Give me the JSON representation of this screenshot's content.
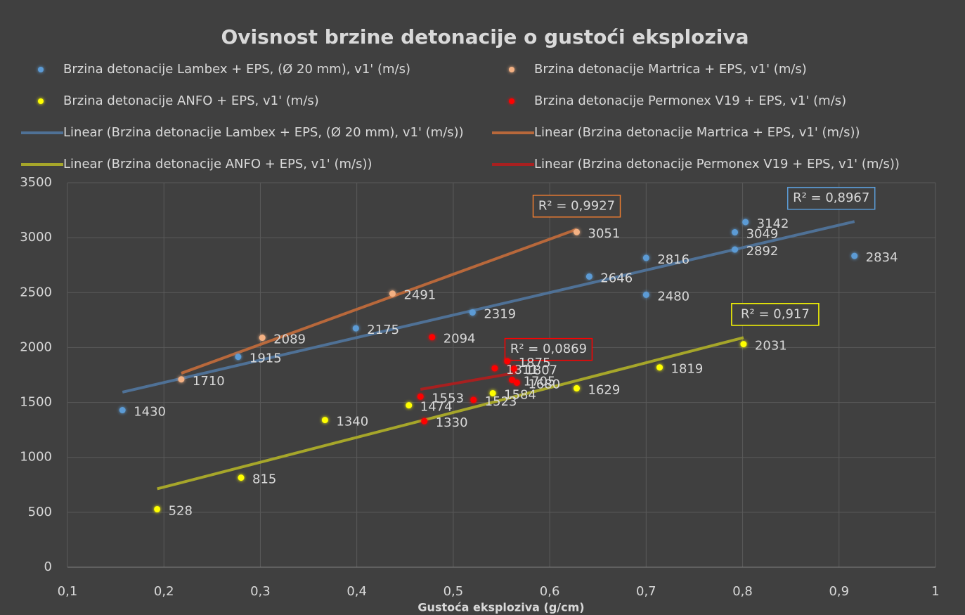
{
  "chart_data": {
    "type": "scatter",
    "title": "Ovisnost brzine detonacije o gustoći eksploziva",
    "x_label": "Gustoća eksploziva (g/cm)",
    "xlim": [
      0.1,
      1
    ],
    "xticks": [
      {
        "value": 0.1,
        "label": "0,1"
      },
      {
        "value": 0.2,
        "label": "0,2"
      },
      {
        "value": 0.3,
        "label": "0,3"
      },
      {
        "value": 0.4,
        "label": "0,4"
      },
      {
        "value": 0.5,
        "label": "0,5"
      },
      {
        "value": 0.6,
        "label": "0,6"
      },
      {
        "value": 0.7,
        "label": "0,7"
      },
      {
        "value": 0.8,
        "label": "0,8"
      },
      {
        "value": 0.9,
        "label": "0,9"
      },
      1
    ],
    "ylim": [
      0,
      3500
    ],
    "yticks": [
      0,
      500,
      1000,
      1500,
      2000,
      2500,
      3000,
      3500
    ],
    "grid": true,
    "legend": "top",
    "series": [
      {
        "name": "Brzina detonacije Lambex + EPS, (Ø 20 mm), v1' (m/s)",
        "color": "#5b9bd5",
        "x": [
          0.157,
          0.277,
          0.399,
          0.52,
          0.641,
          0.7,
          0.7,
          0.792,
          0.792,
          0.803,
          0.916
        ],
        "values": [
          1430,
          1915,
          2175,
          2319,
          2646,
          2816,
          2480,
          2892,
          3049,
          3142,
          2834
        ],
        "trendline": {
          "type": "linear",
          "name": "Linear (Brzina detonacije Lambex + EPS, (Ø 20 mm), v1' (m/s))",
          "color": "#4f7196",
          "r2_label": "R² = 0,8967"
        }
      },
      {
        "name": "Brzina detonacije Martrica + EPS,  v1' (m/s)",
        "color": "#f4b183",
        "x": [
          0.218,
          0.302,
          0.437,
          0.628
        ],
        "values": [
          1710,
          2089,
          2491,
          3051
        ],
        "trendline": {
          "type": "linear",
          "name": "Linear (Brzina detonacije Martrica + EPS,  v1' (m/s))",
          "color": "#b8683b",
          "r2_label": "R² = 0,9927"
        }
      },
      {
        "name": "Brzina detonacije ANFO + EPS, v1' (m/s)",
        "color": "#ffff00",
        "x": [
          0.193,
          0.28,
          0.367,
          0.454,
          0.541,
          0.628,
          0.714,
          0.801
        ],
        "values": [
          528,
          815,
          1340,
          1474,
          1584,
          1629,
          1819,
          2031
        ],
        "trendline": {
          "type": "linear",
          "name": "Linear (Brzina detonacije ANFO + EPS, v1' (m/s))",
          "color": "#a6a62a",
          "r2_label": "R² = 0,917"
        }
      },
      {
        "name": "Brzina detonacije Permonex V19 + EPS, v1' (m/s)",
        "color": "#ff0000",
        "x": [
          0.466,
          0.47,
          0.478,
          0.521,
          0.543,
          0.556,
          0.563,
          0.561,
          0.566
        ],
        "values": [
          1553,
          1330,
          2094,
          1523,
          1811,
          1875,
          1807,
          1705,
          1680
        ],
        "trendline": {
          "type": "linear",
          "name": "Linear (Brzina detonacije Permonex V19 + EPS, v1' (m/s))",
          "color": "#a82020",
          "r2_label": "R² = 0,0869"
        }
      }
    ]
  }
}
